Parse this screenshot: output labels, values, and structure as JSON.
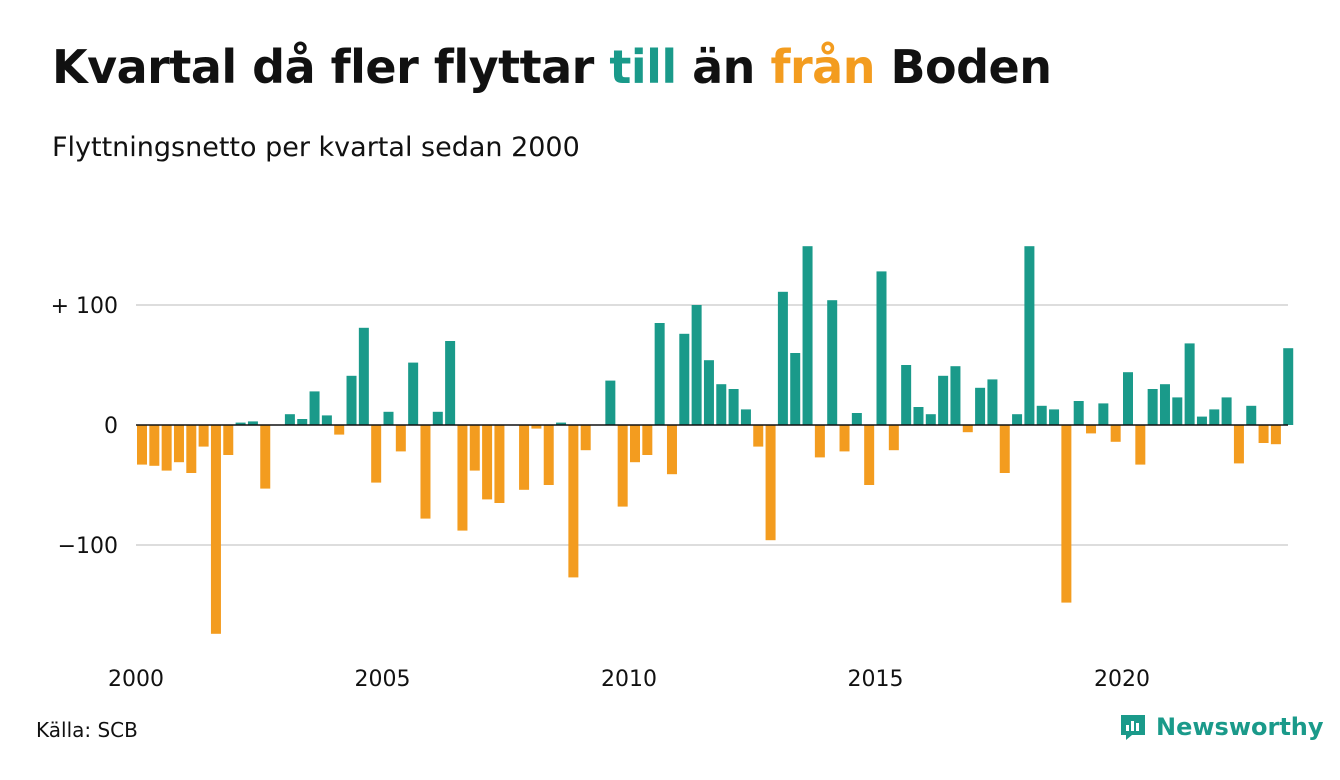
{
  "title": {
    "part1": "Kvartal då fler flyttar ",
    "pos_word": "till",
    "part2": " än ",
    "neg_word": "från",
    "part3": " Boden"
  },
  "subtitle": "Flyttningsnetto per kvartal sedan 2000",
  "source": "Källa: SCB",
  "brand": "Newsworthy",
  "colors": {
    "positive": "#1a9a8a",
    "negative": "#f39c1f",
    "grid": "#dddddd",
    "text": "#111111"
  },
  "chart_data": {
    "type": "bar",
    "x_start": "2000 Q1",
    "y_ticks": [
      100,
      0,
      -100
    ],
    "y_tick_labels": [
      "+ 100",
      "0",
      "−100"
    ],
    "x_ticks": [
      2000,
      2005,
      2010,
      2015,
      2020
    ],
    "x_tick_labels": [
      "2000",
      "2005",
      "2010",
      "2015",
      "2020"
    ],
    "ylim": [
      -175,
      150
    ],
    "grid": true,
    "values": [
      -33,
      -34,
      -38,
      -31,
      -40,
      -18,
      -174,
      -25,
      2,
      3,
      -53,
      0,
      9,
      5,
      28,
      8,
      -8,
      41,
      81,
      -48,
      11,
      -22,
      52,
      -78,
      11,
      70,
      -88,
      -38,
      -62,
      -65,
      0,
      -54,
      -3,
      -50,
      2,
      -127,
      -21,
      0,
      37,
      -68,
      -31,
      -25,
      85,
      -41,
      76,
      100,
      54,
      34,
      30,
      13,
      -18,
      -96,
      111,
      60,
      149,
      -27,
      104,
      -22,
      10,
      -50,
      128,
      -21,
      50,
      15,
      9,
      41,
      49,
      -6,
      31,
      38,
      -40,
      9,
      149,
      16,
      13,
      -148,
      20,
      -7,
      18,
      -14,
      44,
      -33,
      30,
      34,
      23,
      68,
      7,
      13,
      23,
      -32,
      16,
      -15,
      -16,
      64
    ]
  }
}
